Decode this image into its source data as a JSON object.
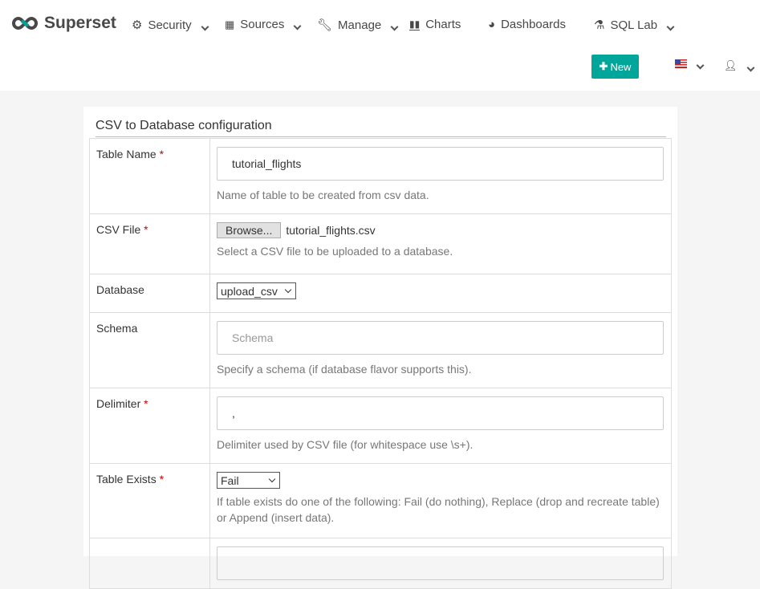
{
  "brand": {
    "name": "Superset",
    "accent": "#00a699"
  },
  "nav": {
    "items": [
      {
        "label": "Security",
        "icon": "cogs-icon",
        "dropdown": true
      },
      {
        "label": "Sources",
        "icon": "table-icon",
        "dropdown": true
      },
      {
        "label": "Manage",
        "icon": "wrench-icon",
        "dropdown": true
      },
      {
        "label": "Charts",
        "icon": "bar-chart-icon",
        "dropdown": false
      },
      {
        "label": "Dashboards",
        "icon": "dashboard-icon",
        "dropdown": false
      },
      {
        "label": "SQL Lab",
        "icon": "flask-icon",
        "dropdown": true
      }
    ],
    "new_label": "New",
    "language_icon": "us-flag-icon",
    "user_icon": "user-icon"
  },
  "form": {
    "title": "CSV to Database configuration",
    "table_name": {
      "label": "Table Name",
      "value": "tutorial_flights",
      "help": "Name of table to be created from csv data."
    },
    "csv_file": {
      "label": "CSV File",
      "browse": "Browse...",
      "filename": "tutorial_flights.csv",
      "help": "Select a CSV file to be uploaded to a database."
    },
    "database": {
      "label": "Database",
      "value": "upload_csv"
    },
    "schema": {
      "label": "Schema",
      "placeholder": "Schema",
      "help": "Specify a schema (if database flavor supports this)."
    },
    "delimiter": {
      "label": "Delimiter",
      "value": ",",
      "help": "Delimiter used by CSV file (for whitespace use \\s+)."
    },
    "table_exists": {
      "label": "Table Exists",
      "value": "Fail",
      "help": "If table exists do one of the following: Fail (do nothing), Replace (drop and recreate table) or Append (insert data)."
    },
    "required_mark": "*"
  }
}
